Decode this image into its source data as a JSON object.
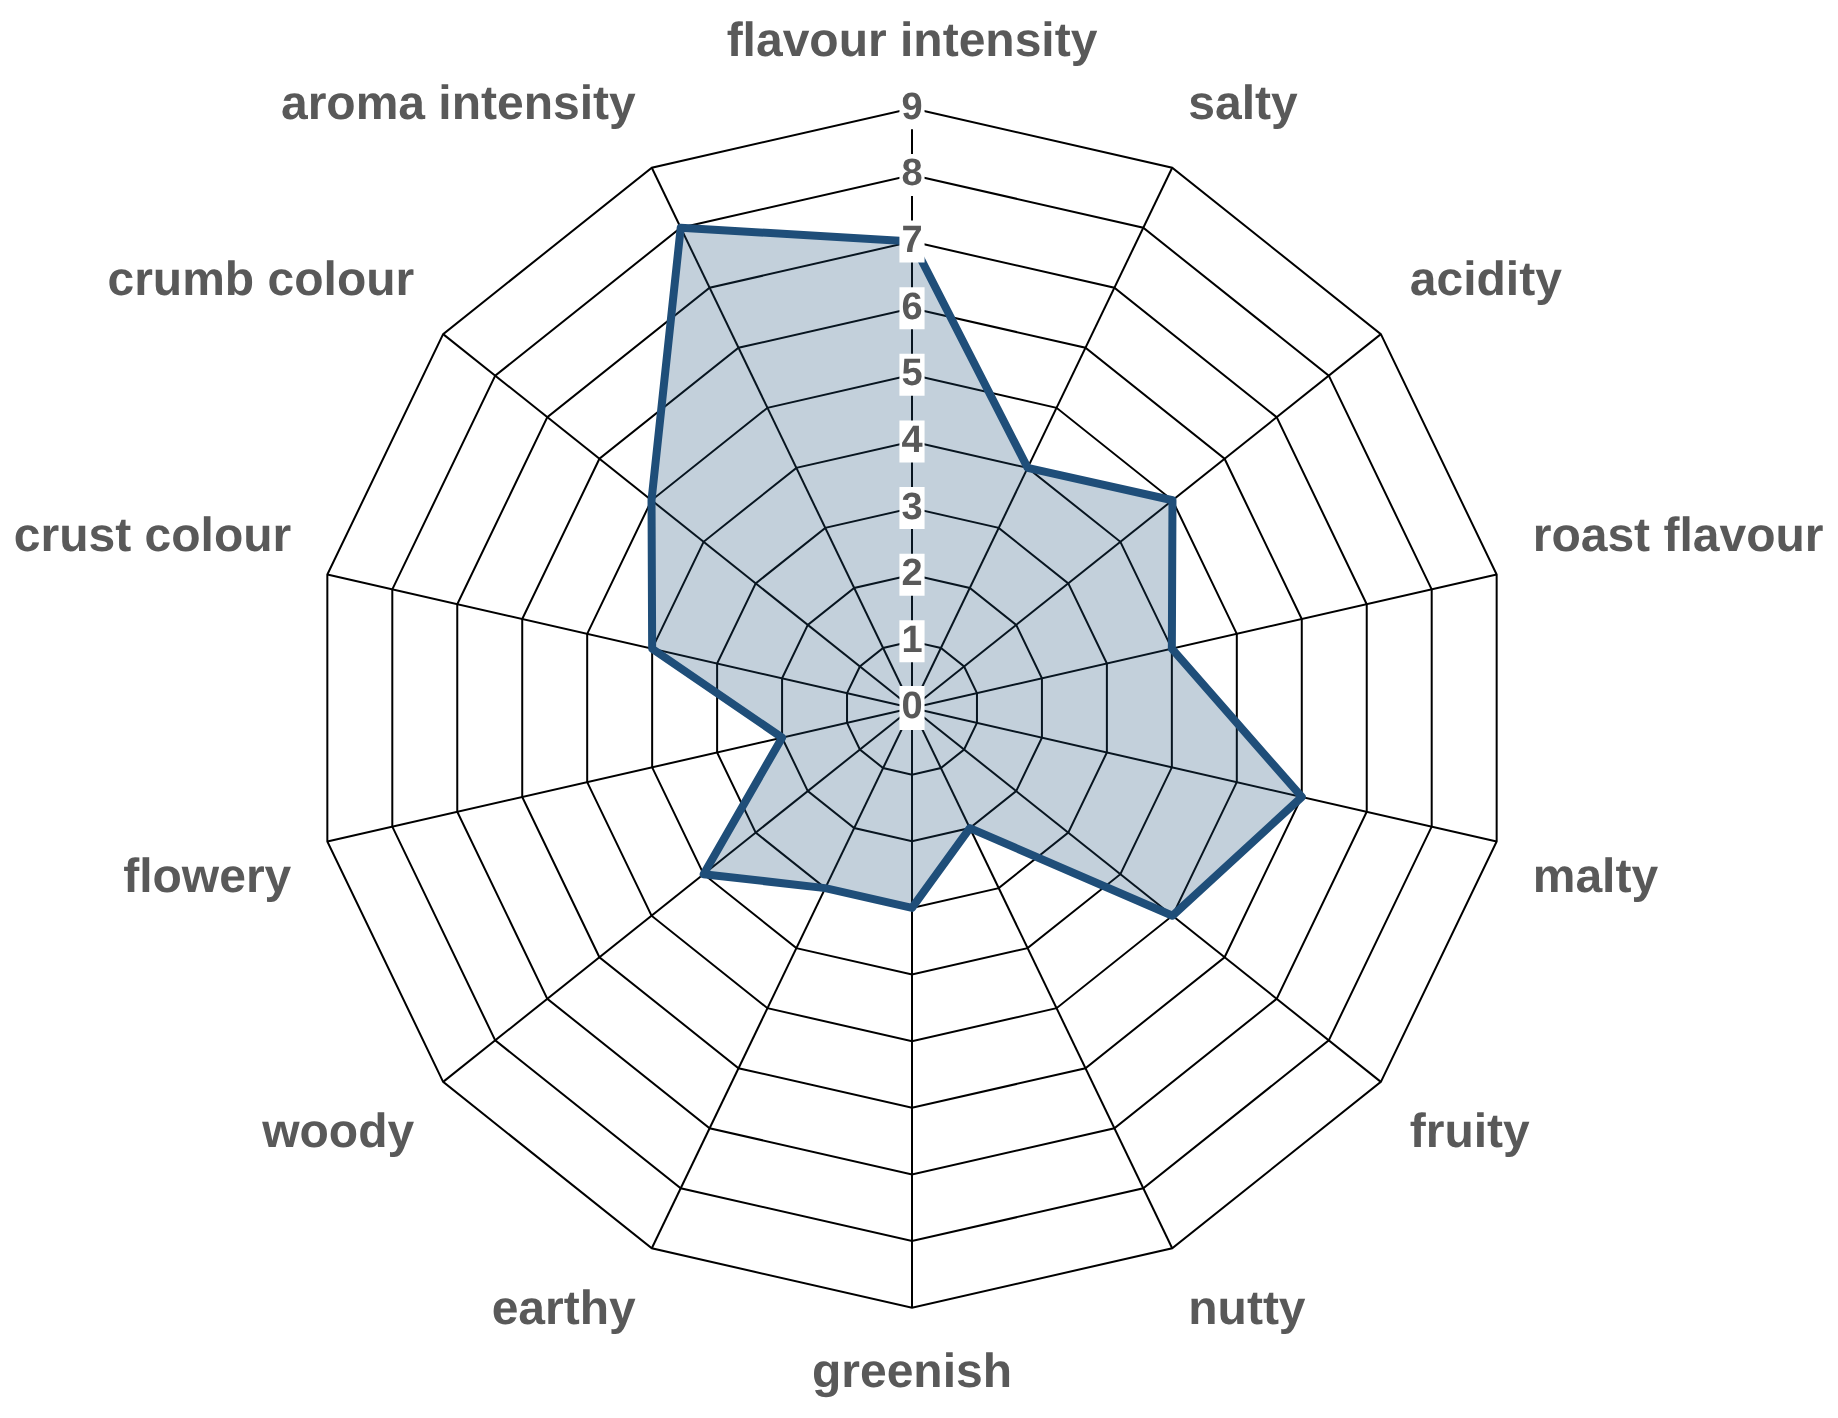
{
  "chart_data": {
    "type": "radar",
    "categories": [
      "flavour intensity",
      "salty",
      "acidity",
      "roast flavour",
      "malty",
      "fruity",
      "nutty",
      "greenish",
      "earthy",
      "woody",
      "flowery",
      "crust colour",
      "crumb colour",
      "aroma intensity"
    ],
    "series": [
      {
        "color": "#1f4e79",
        "values": [
          7,
          4,
          5,
          4,
          6,
          5,
          2,
          3,
          3,
          4,
          2,
          4,
          5,
          8
        ]
      }
    ],
    "ylim": [
      0,
      9
    ],
    "yticks": [
      0,
      1,
      2,
      3,
      4,
      5,
      6,
      7,
      8,
      9
    ],
    "grid": true,
    "legend": false,
    "marker": "none"
  }
}
